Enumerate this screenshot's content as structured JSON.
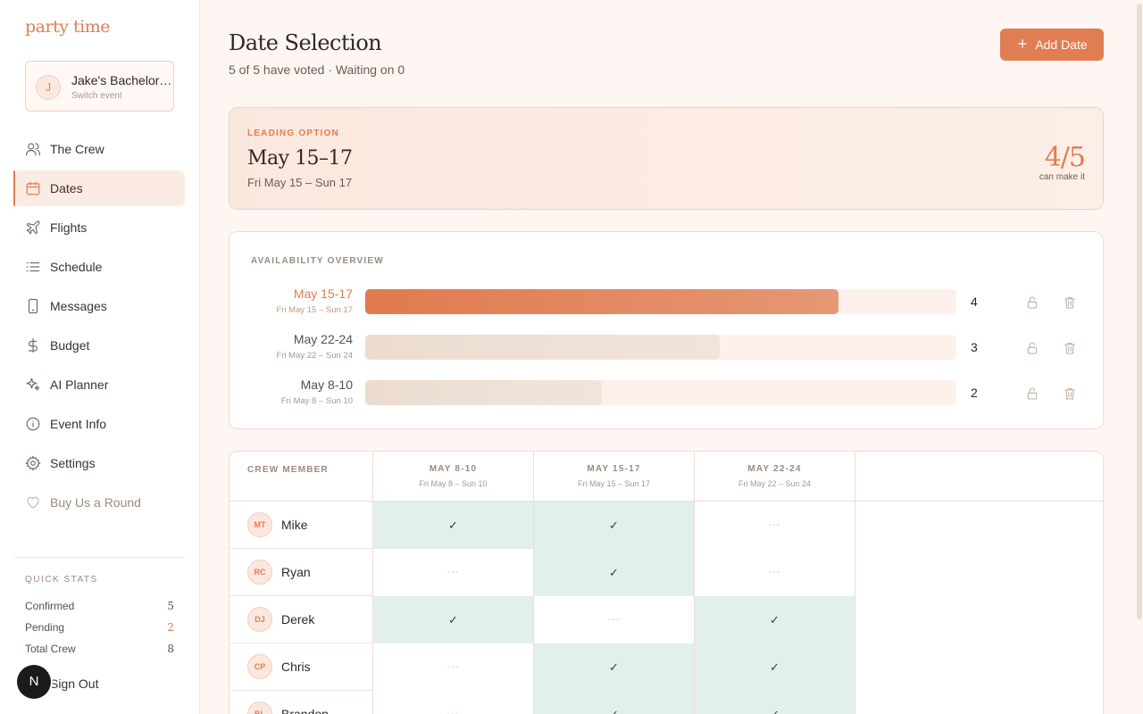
{
  "app": {
    "brand": "party time"
  },
  "event_switcher": {
    "avatar_letter": "J",
    "name": "Jake's Bachelor Party",
    "subtitle": "Switch event"
  },
  "nav": {
    "items": [
      {
        "label": "The Crew",
        "icon": "users-icon"
      },
      {
        "label": "Dates",
        "icon": "calendar-icon"
      },
      {
        "label": "Flights",
        "icon": "plane-icon"
      },
      {
        "label": "Schedule",
        "icon": "list-icon"
      },
      {
        "label": "Messages",
        "icon": "phone-icon"
      },
      {
        "label": "Budget",
        "icon": "dollar-icon"
      },
      {
        "label": "AI Planner",
        "icon": "sparkles-icon"
      },
      {
        "label": "Event Info",
        "icon": "info-icon"
      },
      {
        "label": "Settings",
        "icon": "gear-icon"
      },
      {
        "label": "Buy Us a Round",
        "icon": "heart-icon"
      }
    ],
    "active": "Dates"
  },
  "quick_stats": {
    "title": "QUICK STATS",
    "confirmed_label": "Confirmed",
    "confirmed_value": "5",
    "pending_label": "Pending",
    "pending_value": "2",
    "total_label": "Total Crew",
    "total_value": "8"
  },
  "sign_out": "Sign Out",
  "fab_letter": "N",
  "header": {
    "title": "Date Selection",
    "subtitle": "5 of 5 have voted · Waiting on 0",
    "add_button": "Add Date"
  },
  "leading": {
    "label": "LEADING OPTION",
    "title": "May 15–17",
    "subtitle": "Fri May 15 – Sun 17",
    "score": "4/5",
    "score_sub": "can make it"
  },
  "overview": {
    "title": "AVAILABILITY OVERVIEW",
    "rows": [
      {
        "date": "May 15-17",
        "sub": "Fri May 15 – Sun 17",
        "count": "4",
        "fraction": 0.8
      },
      {
        "date": "May 22-24",
        "sub": "Fri May 22 – Sun 24",
        "count": "3",
        "fraction": 0.6
      },
      {
        "date": "May 8-10",
        "sub": "Fri May 8 – Sun 10",
        "count": "2",
        "fraction": 0.4
      }
    ]
  },
  "grid": {
    "member_header": "CREW MEMBER",
    "columns": [
      {
        "title": "MAY 8-10",
        "sub": "Fri May 8 – Sun 10"
      },
      {
        "title": "MAY 15-17",
        "sub": "Fri May 15 – Sun 17"
      },
      {
        "title": "MAY 22-24",
        "sub": "Fri May 22 – Sun 24"
      }
    ],
    "yes_mark": "✓",
    "no_mark": "---",
    "rows": [
      {
        "initials": "MT",
        "name": "Mike",
        "votes": [
          true,
          true,
          false
        ]
      },
      {
        "initials": "RC",
        "name": "Ryan",
        "votes": [
          false,
          true,
          false
        ]
      },
      {
        "initials": "DJ",
        "name": "Derek",
        "votes": [
          true,
          false,
          true
        ]
      },
      {
        "initials": "CP",
        "name": "Chris",
        "votes": [
          false,
          true,
          true
        ]
      },
      {
        "initials": "BL",
        "name": "Brandon",
        "votes": [
          false,
          true,
          true
        ]
      }
    ]
  }
}
